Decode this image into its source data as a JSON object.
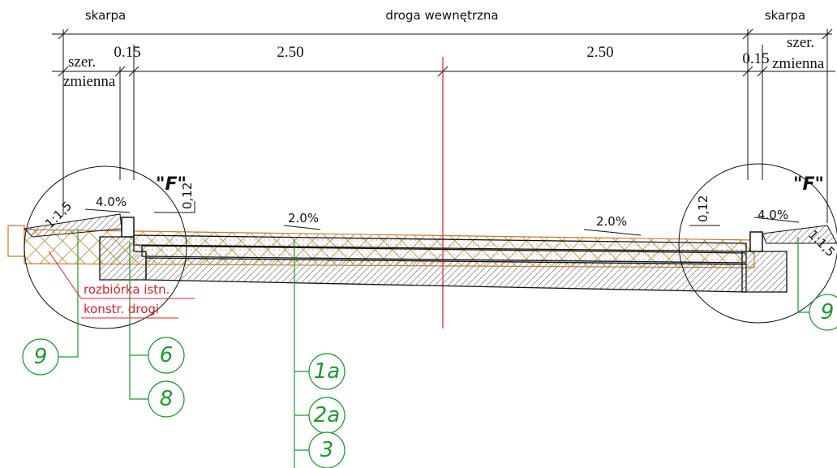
{
  "header": {
    "zones": [
      "skarpa",
      "droga wewnętrzna",
      "skarpa"
    ]
  },
  "dimensions": {
    "left": {
      "width": [
        "szer.",
        "zmienna"
      ],
      "curb": "0.15"
    },
    "lanes": [
      "2.50",
      "2.50"
    ],
    "right": {
      "curb": "0.15",
      "width": [
        "szer.",
        "zmienna"
      ]
    }
  },
  "details": [
    {
      "label": "\"F\"",
      "thickness": "0,12",
      "slope": "4.0%",
      "embankment": "1:1,5"
    },
    {
      "label": "\"F\"",
      "thickness": "0,12",
      "slope": "4.0%",
      "embankment": "1:1,5"
    }
  ],
  "road_slopes": [
    "2.0%",
    "2.0%"
  ],
  "demolition_note": [
    "rozbiórka istn.",
    "konstr. drogi"
  ],
  "layer_markers": [
    "9",
    "6",
    "8",
    "1a",
    "2a",
    "3",
    "9"
  ]
}
